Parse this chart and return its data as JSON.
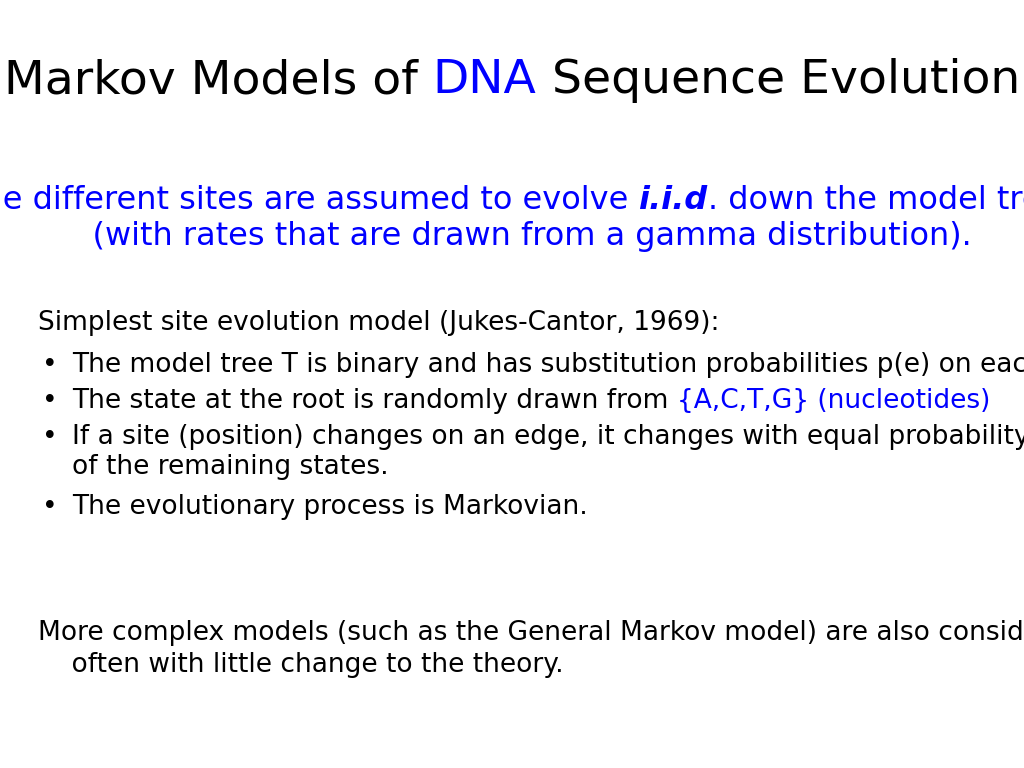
{
  "bg_color": "#FFFFFF",
  "title_prefix": "Markov Models of ",
  "title_dna": "DNA",
  "title_suffix": " Sequence Evolution",
  "title_fontsize": 34,
  "blue_line1_pre": "The different sites are assumed to evolve ",
  "blue_line1_bold": "i.i.d",
  "blue_line1_post": ". down the model tree",
  "blue_line2": "    (with rates that are drawn from a gamma distribution).",
  "blue_color": "#0000FF",
  "black_color": "#000000",
  "blue_fontsize": 23,
  "section_header": "Simplest site evolution model (Jukes-Cantor, 1969):",
  "body_fontsize": 19,
  "bullet1": "The model tree T is binary and has substitution probabilities p(e) on each edge e.",
  "bullet2_pre": "The state at the root is randomly drawn from ",
  "bullet2_blue": "{A,C,T,G} (nucleotides)",
  "bullet3a": "If a site (position) changes on an edge, it changes with equal probability to each",
  "bullet3b": "of the remaining states.",
  "bullet4": "The evolutionary process is Markovian.",
  "footer1": "More complex models (such as the General Markov model) are also considered,",
  "footer2": "    often with little change to the theory."
}
